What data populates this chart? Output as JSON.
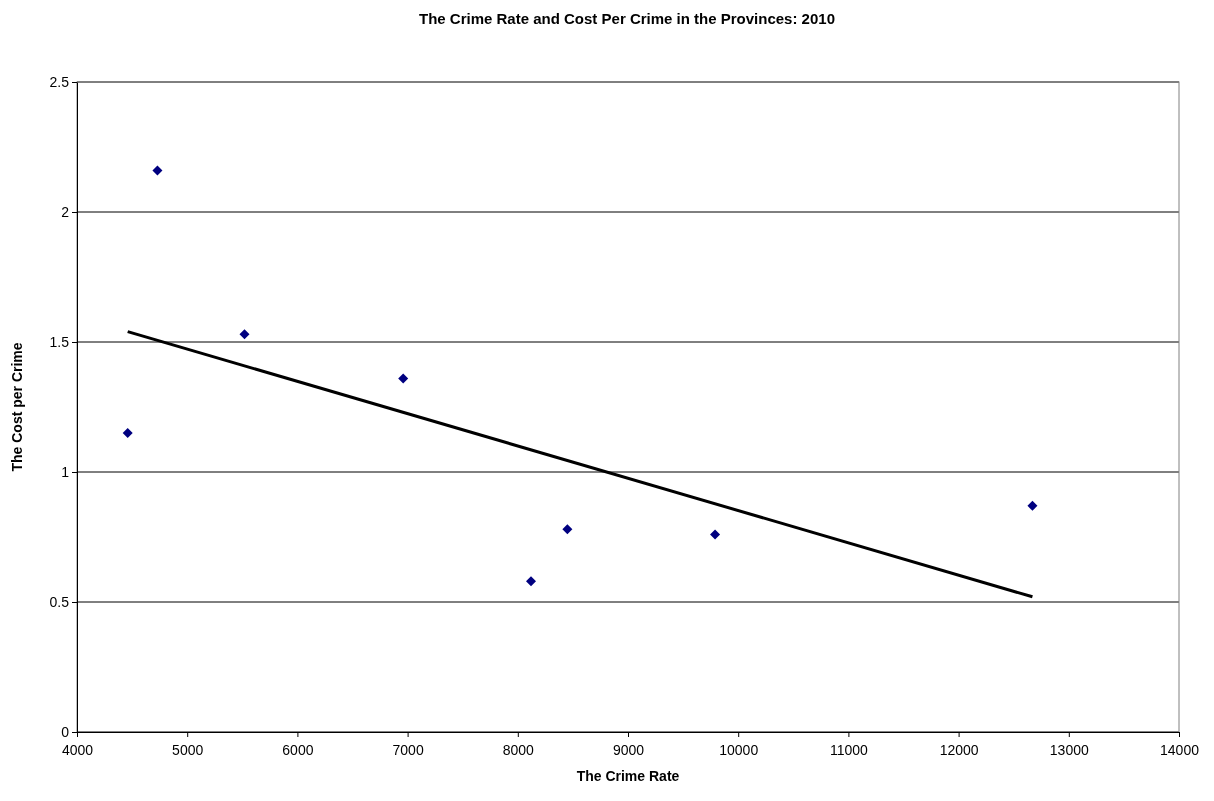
{
  "chart_data": {
    "type": "scatter",
    "title": "The Crime Rate and Cost Per Crime in the Provinces: 2010",
    "xlabel": "The Crime Rate",
    "ylabel": "The Cost per Crime",
    "xlim": [
      4000,
      14000
    ],
    "xticks": [
      4000,
      5000,
      6000,
      7000,
      8000,
      9000,
      10000,
      11000,
      12000,
      13000,
      14000
    ],
    "ylim": [
      0,
      2.5
    ],
    "yticks": [
      0,
      0.5,
      1,
      1.5,
      2,
      2.5
    ],
    "grid": "y",
    "series": [
      {
        "marker": "diamond",
        "color": "#000080",
        "x": [
          4460,
          4730,
          5520,
          6960,
          8120,
          8450,
          9790,
          12670
        ],
        "values": [
          1.15,
          2.16,
          1.53,
          1.36,
          0.58,
          0.78,
          0.76,
          0.87
        ]
      },
      {
        "type": "line",
        "color": "#000000",
        "line_style": "solid",
        "x": [
          4460,
          12670
        ],
        "values": [
          1.54,
          0.52
        ]
      }
    ]
  }
}
